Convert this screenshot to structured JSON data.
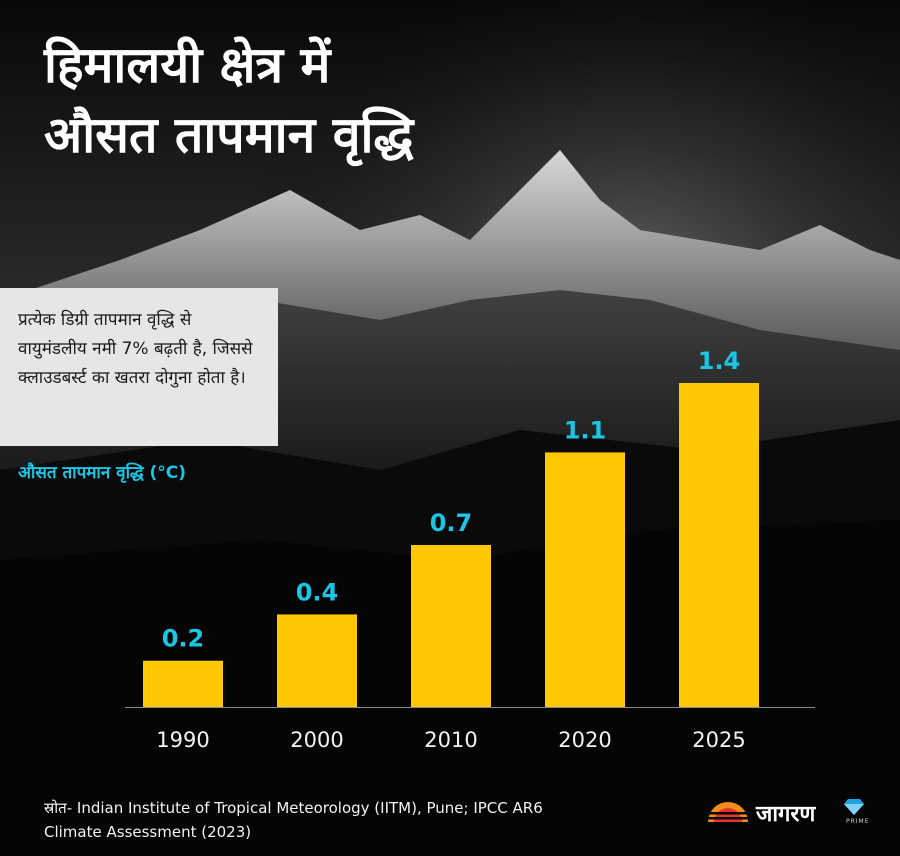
{
  "title": {
    "line1": "हिमालयी क्षेत्र में",
    "line2": "औसत तापमान वृद्धि"
  },
  "note": {
    "text": "प्रत्येक डिग्री तापमान वृद्धि से वायुमंडलीय नमी 7% बढ़ती है, जिससे क्लाउडबर्स्ट का खतरा दोगुना होता है।"
  },
  "chart_data": {
    "type": "bar",
    "title": "",
    "ylabel": "औसत तापमान वृद्धि (°C)",
    "xlabel": "",
    "categories": [
      "1990",
      "2000",
      "2010",
      "2020",
      "2025"
    ],
    "values": [
      0.2,
      0.4,
      0.7,
      1.1,
      1.4
    ],
    "data_labels": [
      "0.2",
      "0.4",
      "0.7",
      "1.1",
      "1.4"
    ],
    "ylim": [
      0,
      1.4
    ],
    "grid": false,
    "legend": "none",
    "bar_color": "#ffc800",
    "label_color": "#19c6e6"
  },
  "source": {
    "text": "स्रोत- Indian Institute of Tropical Meteorology (IITM), Pune; IPCC AR6 Climate Assessment (2023)"
  },
  "logo": {
    "text": "जागरण",
    "sub": "PRIME",
    "icon": "diamond-icon",
    "brand_colors": [
      "#f28c1c",
      "#e3342f",
      "#1fa3e0"
    ]
  }
}
